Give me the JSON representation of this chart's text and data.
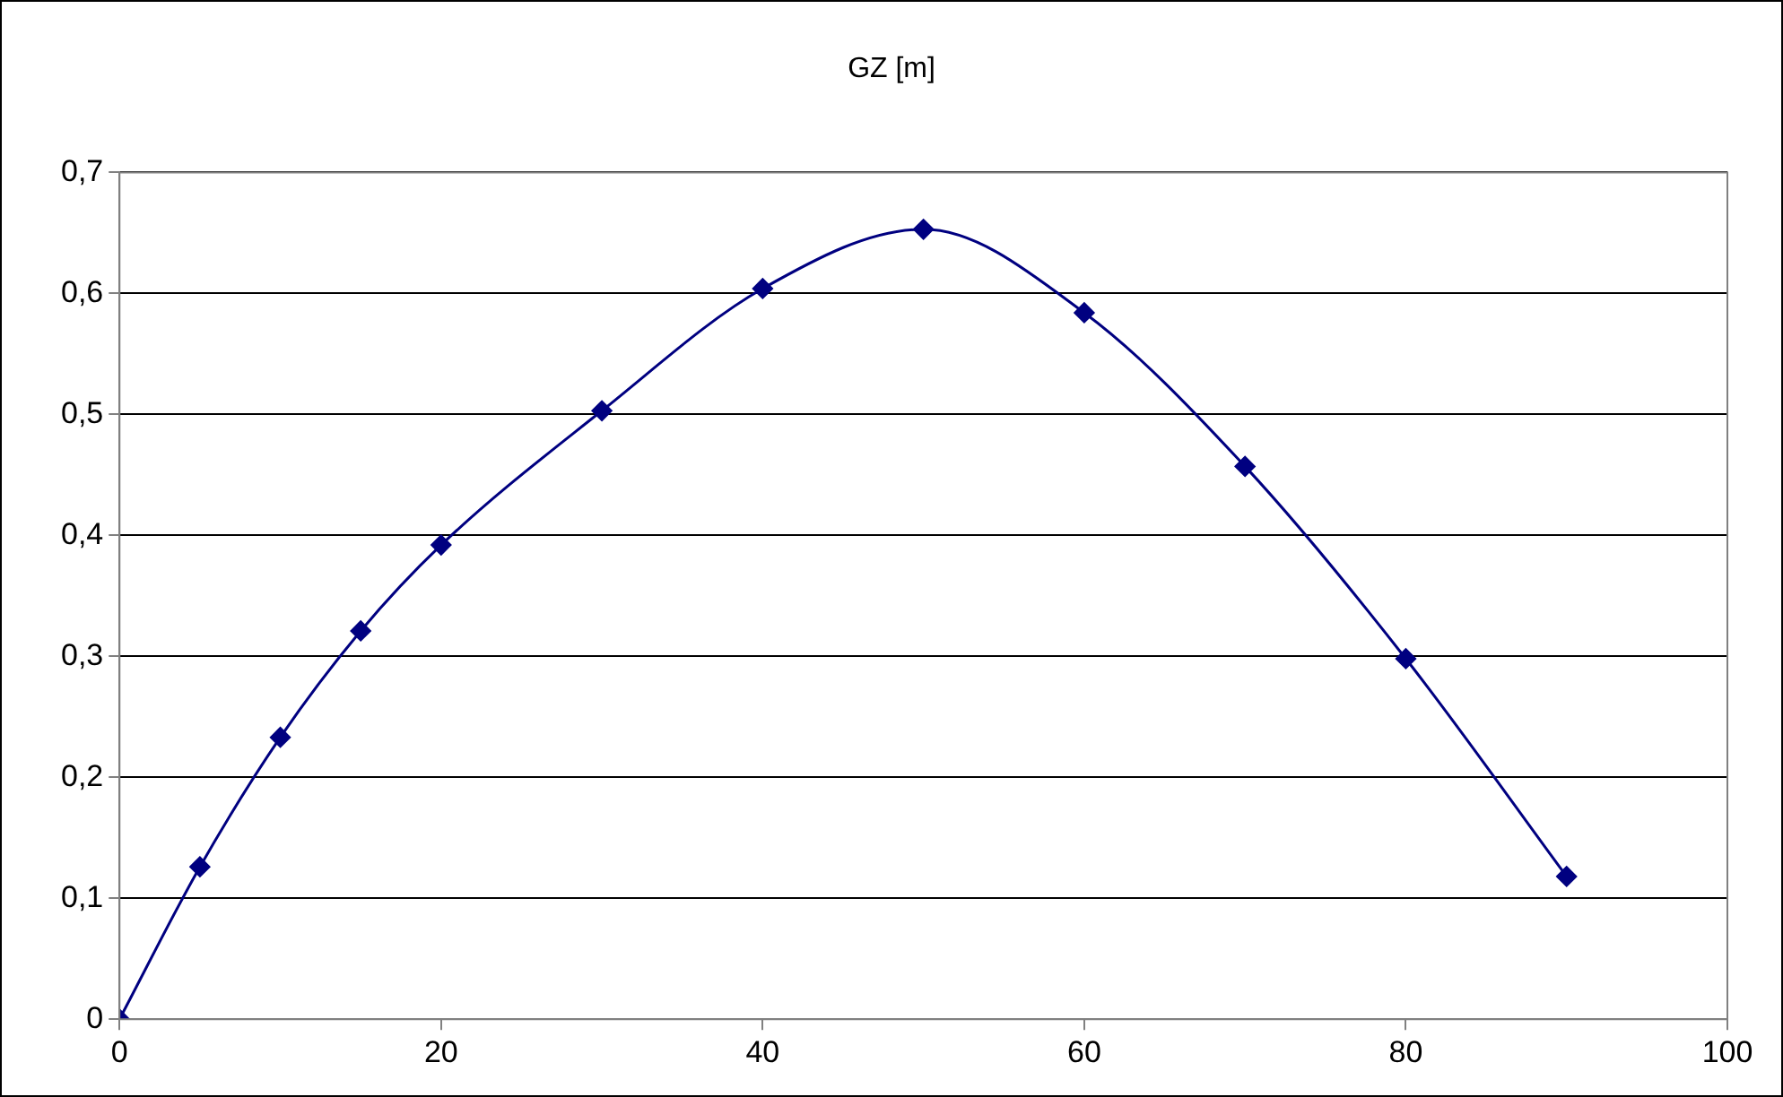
{
  "chart_data": {
    "type": "line",
    "title": "GZ [m]",
    "x": [
      0,
      5,
      10,
      15,
      20,
      30,
      40,
      50,
      60,
      70,
      80,
      90
    ],
    "series": [
      {
        "color": "#000080",
        "values": [
          0,
          0.126,
          0.233,
          0.321,
          0.392,
          0.503,
          0.604,
          0.653,
          0.584,
          0.457,
          0.298,
          0.118
        ]
      }
    ],
    "xlim": [
      0,
      100
    ],
    "xticks": [
      0,
      20,
      40,
      60,
      80,
      100
    ],
    "ylim": [
      0,
      0.7
    ],
    "yticks": [
      0,
      {
        "value": 0.1,
        "label": "0,1"
      },
      {
        "value": 0.2,
        "label": "0,2"
      },
      {
        "value": 0.3,
        "label": "0,3"
      },
      {
        "value": 0.4,
        "label": "0,4"
      },
      {
        "value": 0.5,
        "label": "0,5"
      },
      {
        "value": 0.6,
        "label": "0,6"
      },
      {
        "value": 0.7,
        "label": "0,7"
      }
    ],
    "grid": "y",
    "legend": false,
    "marker": "diamond",
    "line_style": "solid"
  }
}
